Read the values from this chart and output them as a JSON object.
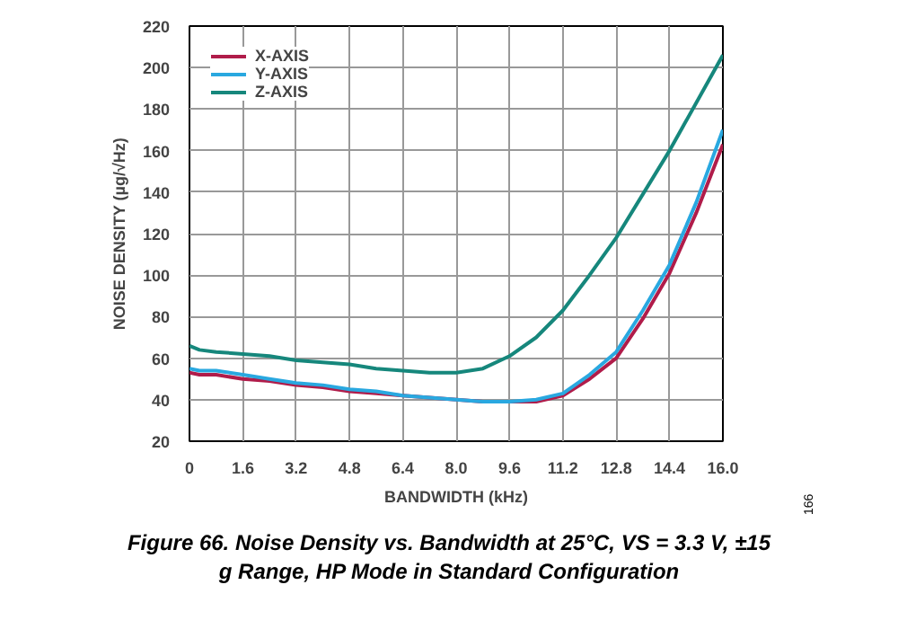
{
  "chart_data": {
    "type": "line",
    "xlabel": "BANDWIDTH (kHz)",
    "ylabel": "NOISE DENSITY (µg/√Hz)",
    "annotations": [
      "Figure 66. Noise Density vs. Bandwidth at 25°C, VS = 3.3 V, ±15 g Range, HP Mode in Standard Configuration",
      "166"
    ],
    "x": [
      0,
      0.3,
      0.8,
      1.6,
      2.4,
      3.2,
      4.0,
      4.8,
      5.6,
      6.4,
      7.2,
      8.0,
      8.8,
      9.6,
      10.4,
      11.2,
      12.0,
      12.8,
      13.6,
      14.4,
      15.2,
      16.0
    ],
    "series": [
      {
        "name": "X-AXIS",
        "color": "#b01c4a",
        "values": [
          53,
          52,
          52,
          50,
          49,
          47,
          46,
          44,
          43,
          42,
          41,
          40,
          39,
          39,
          39,
          42,
          50,
          60,
          79,
          101,
          130,
          163
        ]
      },
      {
        "name": "Y-AXIS",
        "color": "#29a8e0",
        "values": [
          55,
          54,
          54,
          52,
          50,
          48,
          47,
          45,
          44,
          42,
          41,
          40,
          39,
          39,
          40,
          43,
          52,
          63,
          83,
          105,
          135,
          170
        ]
      },
      {
        "name": "Z-AXIS",
        "color": "#16877c",
        "values": [
          66,
          64,
          63,
          62,
          61,
          59,
          58,
          57,
          55,
          54,
          53,
          53,
          55,
          61,
          70,
          83,
          100,
          118,
          139,
          160,
          183,
          206
        ]
      }
    ],
    "xlim": [
      0,
      16
    ],
    "xticks": [
      0,
      1.6,
      3.2,
      4.8,
      6.4,
      {
        "value": 8,
        "label": "8.0"
      },
      9.6,
      11.2,
      12.8,
      14.4,
      {
        "value": 16,
        "label": "16.0"
      }
    ],
    "ylim": [
      20,
      220
    ],
    "yticks": [
      20,
      40,
      60,
      80,
      100,
      120,
      140,
      160,
      180,
      200,
      220
    ],
    "grid": true,
    "legend": "top left",
    "marker": "none",
    "line_style": "solid"
  }
}
